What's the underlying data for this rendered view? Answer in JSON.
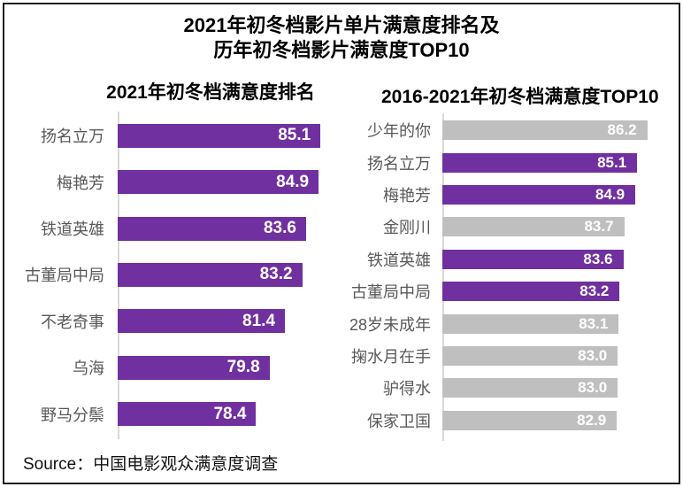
{
  "title": {
    "line1": "2021年初冬档影片单片满意度排名及",
    "line2": "历年初冬档影片满意度TOP10"
  },
  "source_note": "Source：中国电影观众满意度调查",
  "colors": {
    "purple": "#7030A0",
    "gray": "#BFBFBF",
    "category_label_text": "#595959",
    "value_label_text": "#FFFFFF",
    "axis_line": "#D9D9D9",
    "heading_text": "#000000",
    "border": "#1C1C1C",
    "background": "#FFFFFF"
  },
  "chart_data": [
    {
      "type": "bar",
      "orientation": "horizontal",
      "title": "2021年初冬档满意度排名",
      "categories": [
        "扬名立万",
        "梅艳芳",
        "铁道英雄",
        "古董局中局",
        "不老奇事",
        "乌海",
        "野马分鬃"
      ],
      "values": [
        85.1,
        84.9,
        83.6,
        83.2,
        81.4,
        79.8,
        78.4
      ],
      "value_labels": [
        "85.1",
        "84.9",
        "83.6",
        "83.2",
        "81.4",
        "79.8",
        "78.4"
      ],
      "bar_colors": [
        "purple",
        "purple",
        "purple",
        "purple",
        "purple",
        "purple",
        "purple"
      ],
      "xlim": [
        64,
        86
      ],
      "grid": false,
      "legend": "none",
      "value_label_position": "inside-end"
    },
    {
      "type": "bar",
      "orientation": "horizontal",
      "title": "2016-2021年初冬档满意度TOP10",
      "categories": [
        "少年的你",
        "扬名立万",
        "梅艳芳",
        "金刚川",
        "铁道英雄",
        "古董局中局",
        "28岁未成年",
        "掬水月在手",
        "驴得水",
        "保家卫国"
      ],
      "values": [
        86.2,
        85.1,
        84.9,
        83.7,
        83.6,
        83.2,
        83.1,
        83.0,
        83.0,
        82.9
      ],
      "value_labels": [
        "86.2",
        "85.1",
        "84.9",
        "83.7",
        "83.6",
        "83.2",
        "83.1",
        "83.0",
        "83.0",
        "82.9"
      ],
      "bar_colors": [
        "gray",
        "purple",
        "purple",
        "gray",
        "purple",
        "purple",
        "gray",
        "gray",
        "gray",
        "gray"
      ],
      "xlim": [
        64,
        87
      ],
      "grid": false,
      "legend": "none",
      "value_label_position": "inside-end"
    }
  ]
}
